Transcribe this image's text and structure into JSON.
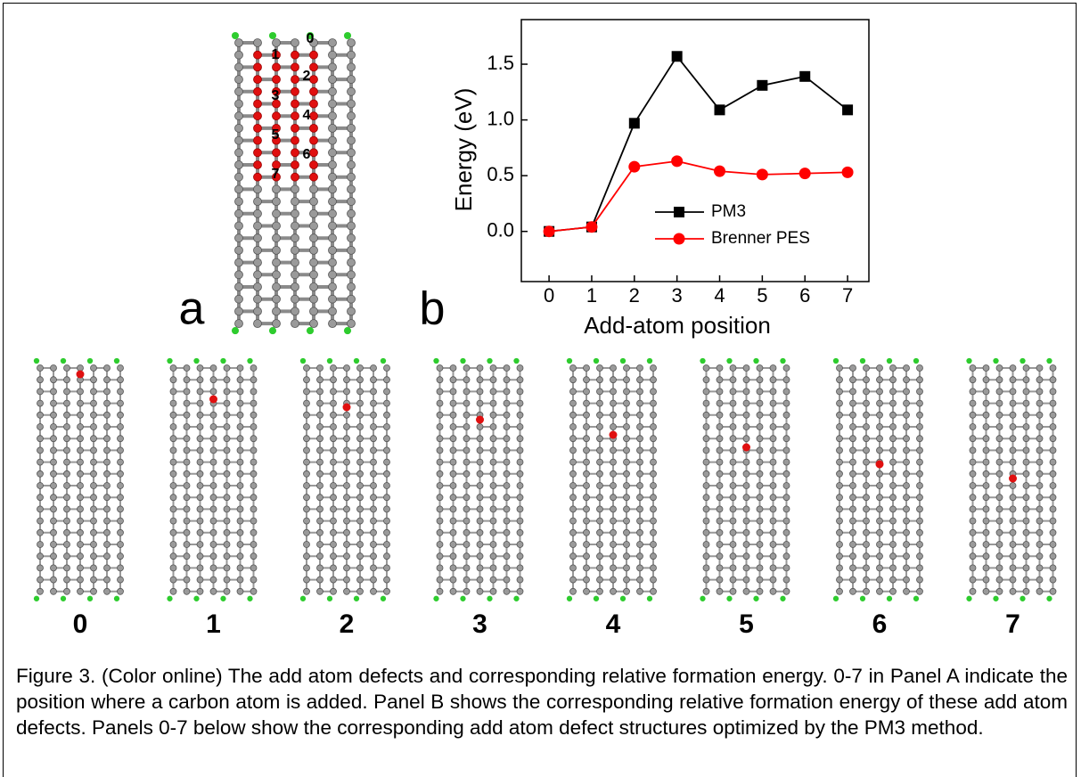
{
  "panel_a": {
    "letter": "a",
    "sites": [
      "0",
      "1",
      "2",
      "3",
      "4",
      "5",
      "6",
      "7"
    ]
  },
  "chart_data": {
    "type": "line",
    "letter": "b",
    "x_label": "Add-atom position",
    "y_label": "Energy (eV)",
    "x": [
      0,
      1,
      2,
      3,
      4,
      5,
      6,
      7
    ],
    "xlim": [
      -0.65,
      7.5
    ],
    "xticks": [
      0,
      1,
      2,
      3,
      4,
      5,
      6,
      7
    ],
    "ylim": [
      -0.45,
      1.9
    ],
    "yticks": [
      {
        "value": 0,
        "label": "0.0"
      },
      0.5,
      {
        "value": 1,
        "label": "1.0"
      },
      1.5
    ],
    "legend": "center-right",
    "series": [
      {
        "name": "PM3",
        "color": "#000000",
        "marker": "square",
        "values": [
          0,
          0.04,
          0.97,
          1.57,
          1.09,
          1.31,
          1.39,
          1.09
        ]
      },
      {
        "name": "Brenner PES",
        "color": "#ff0000",
        "marker": "circle",
        "values": [
          0,
          0.04,
          0.58,
          0.63,
          0.54,
          0.51,
          0.52,
          0.53
        ]
      }
    ]
  },
  "structures": [
    "0",
    "1",
    "2",
    "3",
    "4",
    "5",
    "6",
    "7"
  ],
  "caption": "Figure 3. (Color online) The add atom defects and corresponding relative formation energy. 0-7 in Panel A indicate the position where a carbon atom is added. Panel B shows the corresponding relative formation energy of these add atom defects. Panels 0-7 below show the corresponding add atom defect structures optimized by the PM3 method."
}
